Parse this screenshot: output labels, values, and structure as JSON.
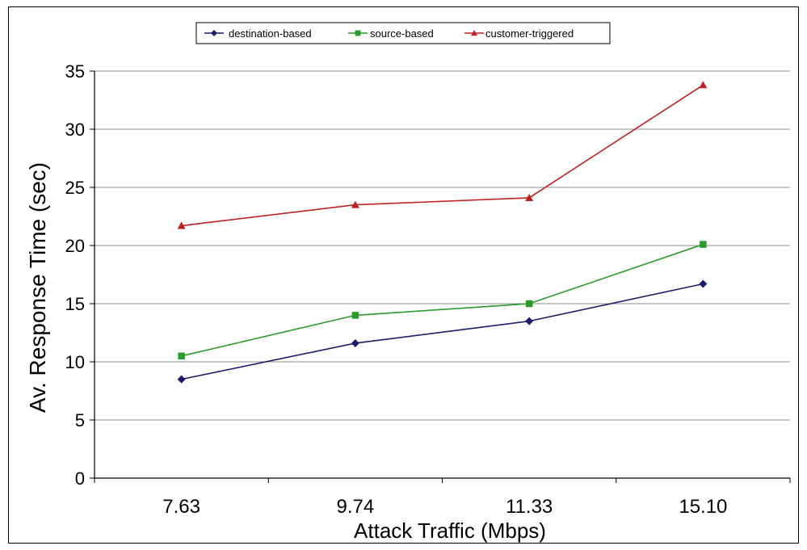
{
  "chart_data": {
    "type": "line",
    "categories": [
      "7.63",
      "9.74",
      "11.33",
      "15.10"
    ],
    "xlabel": "Attack Traffic (Mbps)",
    "ylabel": "Av. Response Time (sec)",
    "ylim": [
      0,
      35
    ],
    "yticks": [
      0,
      5,
      10,
      15,
      20,
      25,
      30,
      35
    ],
    "grid": true,
    "legend_position": "top-center",
    "series": [
      {
        "name": "destination-based",
        "values": [
          8.5,
          11.6,
          13.5,
          16.7
        ],
        "color": "#1c1c6e",
        "marker": "diamond"
      },
      {
        "name": "source-based",
        "values": [
          10.5,
          14.0,
          15.0,
          20.1
        ],
        "color": "#2a9a2a",
        "marker": "square"
      },
      {
        "name": "customer-triggered",
        "values": [
          21.7,
          23.5,
          24.1,
          33.8
        ],
        "color": "#c02020",
        "marker": "triangle"
      }
    ]
  }
}
